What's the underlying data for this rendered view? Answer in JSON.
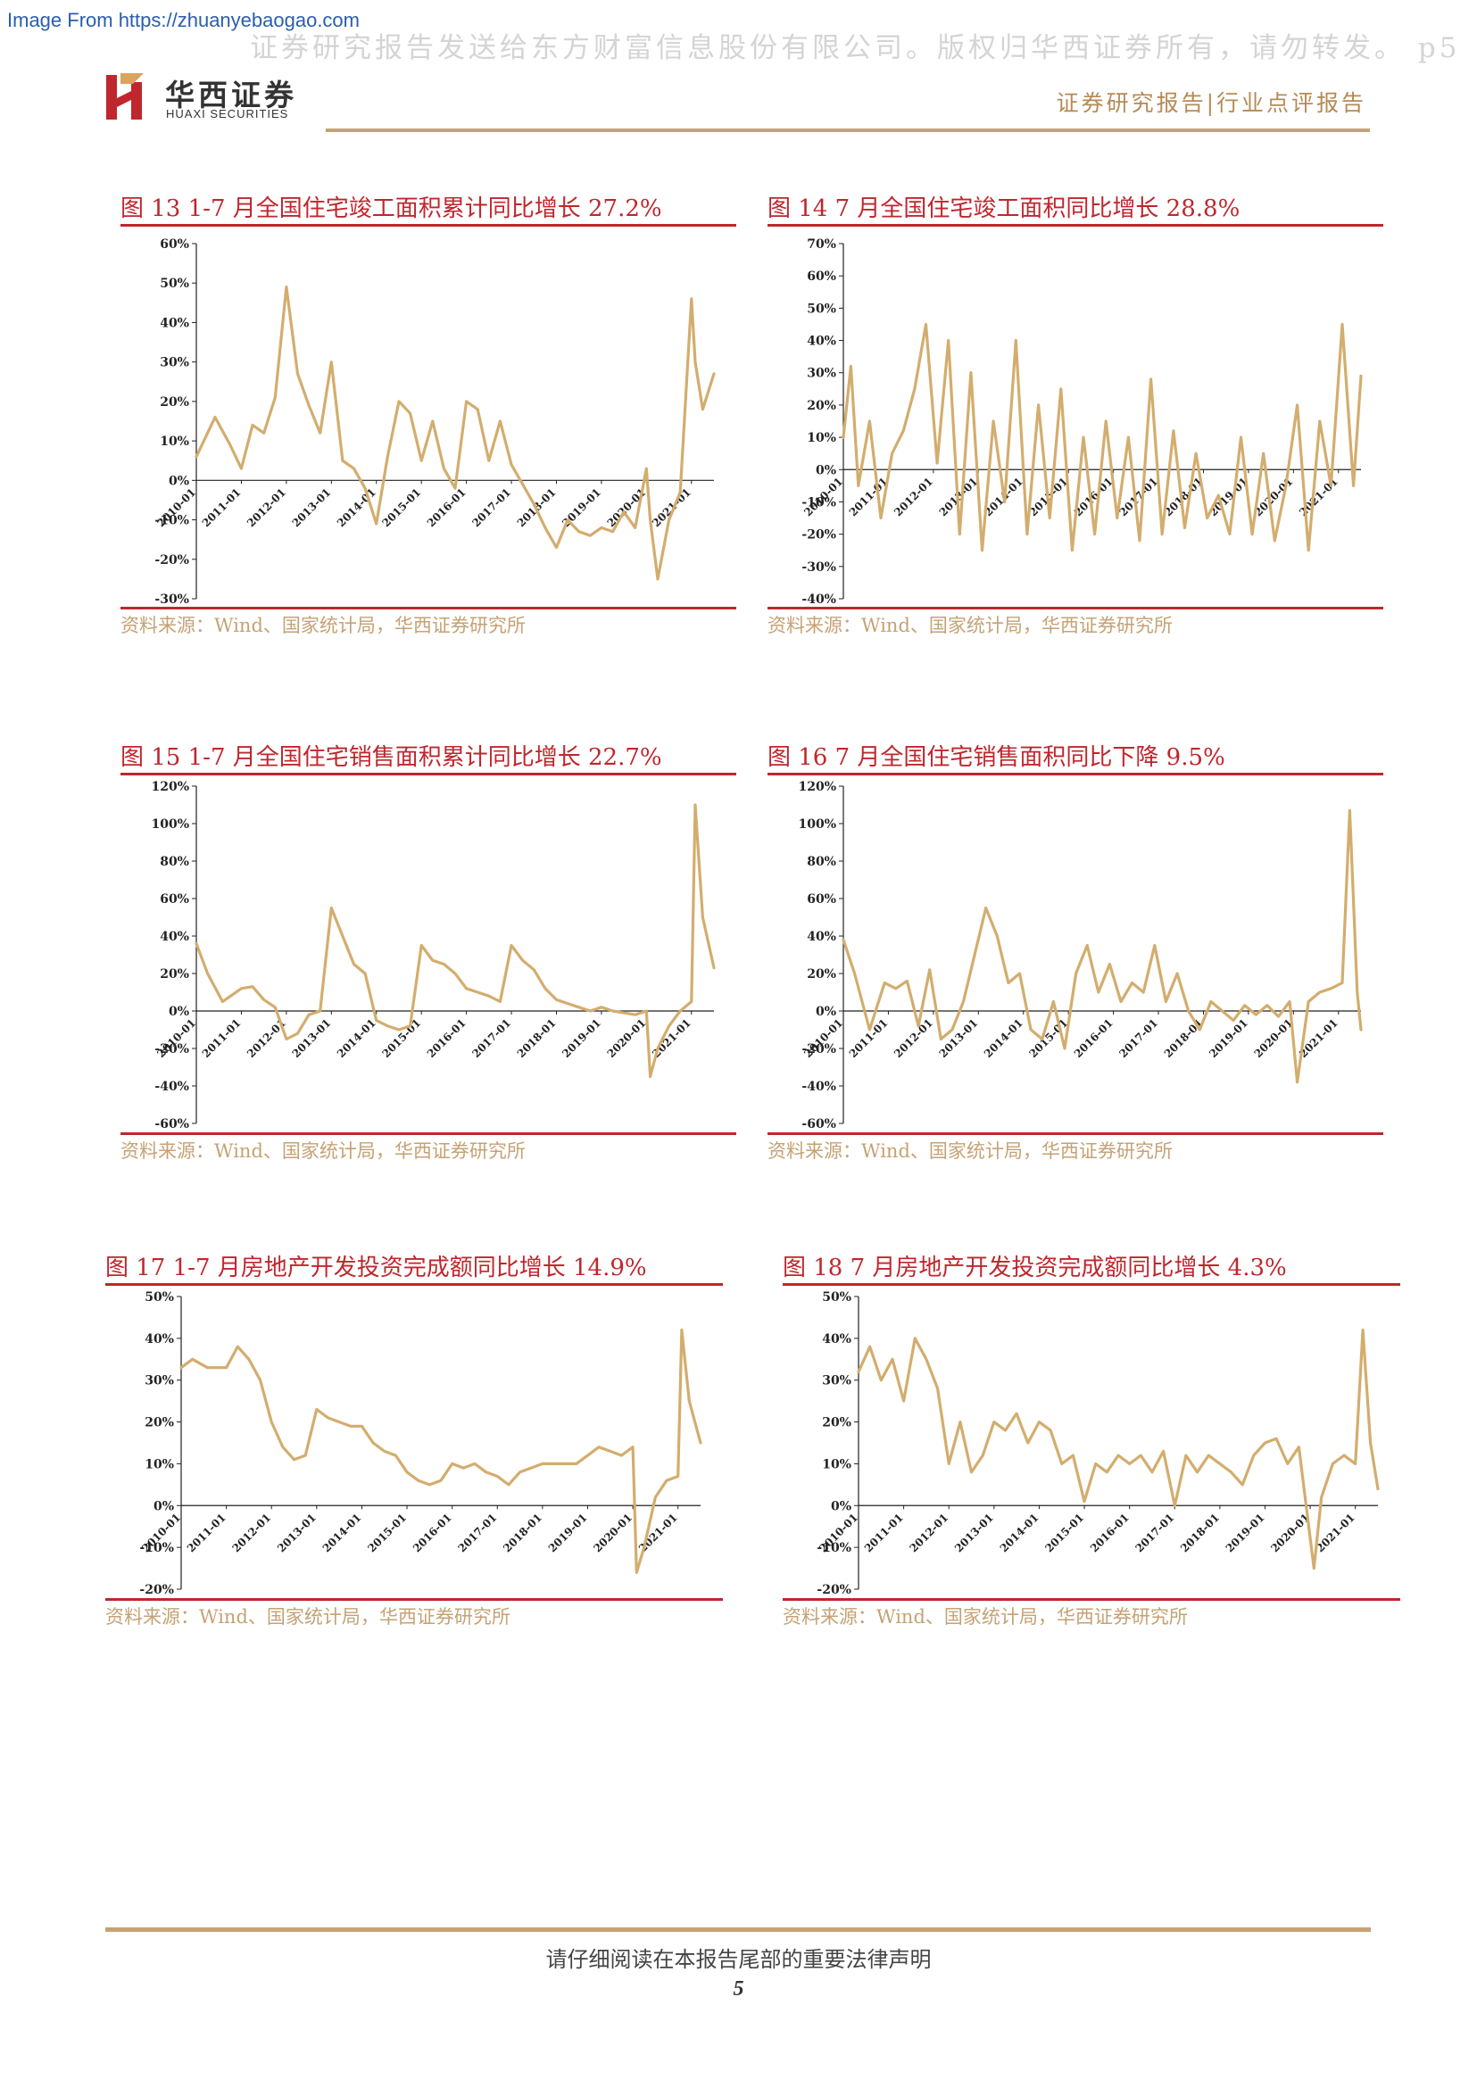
{
  "source_link": "Image From https://zhuanyebaogao.com",
  "watermark": "证券研究报告发送给东方财富信息股份有限公司。版权归华西证券所有，请勿转发。 p5",
  "brand": {
    "name_cn": "华西证券",
    "name_en": "HUAXI SECURITIES"
  },
  "report_type": "证券研究报告|行业点评报告",
  "footer_note": "请仔细阅读在本报告尾部的重要法律声明",
  "page_number": "5",
  "colors": {
    "series": "#d3ad6e",
    "accent_red": "#c0262d",
    "gold": "#c5a274"
  },
  "chart_data": [
    {
      "type": "line",
      "title": "图 13 1-7 月全国住宅竣工面积累计同比增长 27.2%",
      "source": "资料来源：Wind、国家统计局，华西证券研究所",
      "ylim": [
        -30,
        60
      ],
      "ystep": 10,
      "x_start": "2010-01",
      "x_end": "2021-07",
      "xticks": [
        "2010-01",
        "2011-01",
        "2012-01",
        "2013-01",
        "2014-01",
        "2015-01",
        "2016-01",
        "2017-01",
        "2018-01",
        "2019-01",
        "2020-01",
        "2021-01"
      ],
      "x": [
        "2010-01",
        "2010-06",
        "2010-10",
        "2011-01",
        "2011-04",
        "2011-07",
        "2011-10",
        "2012-01",
        "2012-04",
        "2012-07",
        "2012-10",
        "2013-01",
        "2013-04",
        "2013-07",
        "2013-10",
        "2014-01",
        "2014-04",
        "2014-07",
        "2014-10",
        "2015-01",
        "2015-04",
        "2015-07",
        "2015-10",
        "2016-01",
        "2016-04",
        "2016-07",
        "2016-10",
        "2017-01",
        "2017-04",
        "2017-07",
        "2017-10",
        "2018-01",
        "2018-04",
        "2018-07",
        "2018-10",
        "2019-01",
        "2019-04",
        "2019-07",
        "2019-10",
        "2020-01",
        "2020-02",
        "2020-04",
        "2020-07",
        "2020-10",
        "2021-01",
        "2021-02",
        "2021-04",
        "2021-07"
      ],
      "series": [
        {
          "values": [
            6,
            16,
            9,
            3,
            14,
            12,
            21,
            49,
            27,
            19,
            12,
            30,
            5,
            3,
            -2,
            -11,
            6,
            20,
            17,
            5,
            15,
            3,
            -2,
            20,
            18,
            5,
            15,
            4,
            -1,
            -6,
            -12,
            -17,
            -10,
            -13,
            -14,
            -12,
            -13,
            -8,
            -12,
            3,
            -10,
            -25,
            -10,
            -3,
            46,
            30,
            18,
            27
          ]
        }
      ]
    },
    {
      "type": "line",
      "title": "图 14 7 月全国住宅竣工面积同比增长 28.8%",
      "source": "资料来源：Wind、国家统计局，华西证券研究所",
      "ylim": [
        -40,
        70
      ],
      "ystep": 10,
      "x_start": "2010-01",
      "x_end": "2021-07",
      "xticks": [
        "2010-01",
        "2011-01",
        "2012-01",
        "2013-01",
        "2014-01",
        "2015-01",
        "2016-01",
        "2017-01",
        "2018-01",
        "2019-01",
        "2020-01",
        "2021-01"
      ],
      "x": [
        "2010-01",
        "2010-03",
        "2010-05",
        "2010-08",
        "2010-11",
        "2011-02",
        "2011-05",
        "2011-08",
        "2011-11",
        "2012-02",
        "2012-05",
        "2012-08",
        "2012-11",
        "2013-02",
        "2013-05",
        "2013-08",
        "2013-11",
        "2014-02",
        "2014-05",
        "2014-08",
        "2014-11",
        "2015-02",
        "2015-05",
        "2015-08",
        "2015-11",
        "2016-02",
        "2016-05",
        "2016-08",
        "2016-11",
        "2017-02",
        "2017-05",
        "2017-08",
        "2017-11",
        "2018-02",
        "2018-05",
        "2018-08",
        "2018-11",
        "2019-02",
        "2019-05",
        "2019-08",
        "2019-11",
        "2020-02",
        "2020-05",
        "2020-08",
        "2020-11",
        "2021-02",
        "2021-05",
        "2021-07"
      ],
      "series": [
        {
          "values": [
            10,
            32,
            -5,
            15,
            -15,
            5,
            12,
            25,
            45,
            2,
            40,
            -20,
            30,
            -25,
            15,
            -10,
            40,
            -20,
            20,
            -15,
            25,
            -25,
            10,
            -20,
            15,
            -15,
            10,
            -22,
            28,
            -20,
            12,
            -18,
            5,
            -15,
            -8,
            -20,
            10,
            -20,
            5,
            -22,
            -5,
            20,
            -25,
            15,
            -5,
            45,
            -5,
            29
          ]
        }
      ]
    },
    {
      "type": "line",
      "title": "图 15 1-7 月全国住宅销售面积累计同比增长 22.7%",
      "source": "资料来源：Wind、国家统计局，华西证券研究所",
      "ylim": [
        -60,
        120
      ],
      "ystep": 20,
      "x_start": "2010-01",
      "x_end": "2021-07",
      "xticks": [
        "2010-01",
        "2011-01",
        "2012-01",
        "2013-01",
        "2014-01",
        "2015-01",
        "2016-01",
        "2017-01",
        "2018-01",
        "2019-01",
        "2020-01",
        "2021-01"
      ],
      "x": [
        "2010-01",
        "2010-04",
        "2010-08",
        "2011-01",
        "2011-04",
        "2011-07",
        "2011-10",
        "2012-01",
        "2012-04",
        "2012-07",
        "2012-10",
        "2013-01",
        "2013-04",
        "2013-07",
        "2013-10",
        "2014-01",
        "2014-04",
        "2014-07",
        "2014-10",
        "2015-01",
        "2015-04",
        "2015-07",
        "2015-10",
        "2016-01",
        "2016-04",
        "2016-07",
        "2016-10",
        "2017-01",
        "2017-04",
        "2017-07",
        "2017-10",
        "2018-01",
        "2018-04",
        "2018-07",
        "2018-10",
        "2019-01",
        "2019-04",
        "2019-07",
        "2019-10",
        "2020-01",
        "2020-02",
        "2020-04",
        "2020-07",
        "2020-10",
        "2021-01",
        "2021-02",
        "2021-04",
        "2021-07"
      ],
      "series": [
        {
          "values": [
            36,
            20,
            5,
            12,
            13,
            6,
            2,
            -15,
            -12,
            -2,
            0,
            55,
            40,
            25,
            20,
            -5,
            -8,
            -10,
            -8,
            35,
            27,
            25,
            20,
            12,
            10,
            8,
            5,
            35,
            27,
            22,
            12,
            6,
            4,
            2,
            0,
            2,
            0,
            -1,
            -2,
            0,
            -35,
            -20,
            -8,
            0,
            5,
            110,
            50,
            23
          ]
        }
      ]
    },
    {
      "type": "line",
      "title": "图 16 7 月全国住宅销售面积同比下降 9.5%",
      "source": "资料来源：Wind、国家统计局，华西证券研究所",
      "ylim": [
        -60,
        120
      ],
      "ystep": 20,
      "x_start": "2010-01",
      "x_end": "2021-07",
      "xticks": [
        "2010-01",
        "2011-01",
        "2012-01",
        "2013-01",
        "2014-01",
        "2015-01",
        "2016-01",
        "2017-01",
        "2018-01",
        "2019-01",
        "2020-01",
        "2021-01"
      ],
      "x": [
        "2010-01",
        "2010-04",
        "2010-08",
        "2010-12",
        "2011-03",
        "2011-06",
        "2011-09",
        "2011-12",
        "2012-03",
        "2012-06",
        "2012-09",
        "2012-12",
        "2013-03",
        "2013-06",
        "2013-09",
        "2013-12",
        "2014-03",
        "2014-06",
        "2014-09",
        "2014-12",
        "2015-03",
        "2015-06",
        "2015-09",
        "2015-12",
        "2016-03",
        "2016-06",
        "2016-09",
        "2016-12",
        "2017-03",
        "2017-06",
        "2017-09",
        "2017-12",
        "2018-03",
        "2018-06",
        "2018-09",
        "2018-12",
        "2019-03",
        "2019-06",
        "2019-09",
        "2019-12",
        "2020-02",
        "2020-05",
        "2020-08",
        "2020-11",
        "2021-02",
        "2021-04",
        "2021-06",
        "2021-07"
      ],
      "series": [
        {
          "values": [
            38,
            20,
            -10,
            15,
            12,
            16,
            -8,
            22,
            -15,
            -10,
            5,
            30,
            55,
            40,
            15,
            20,
            -10,
            -15,
            5,
            -20,
            20,
            35,
            10,
            25,
            5,
            15,
            10,
            35,
            5,
            20,
            0,
            -10,
            5,
            0,
            -5,
            3,
            -2,
            3,
            -3,
            5,
            -38,
            5,
            10,
            12,
            15,
            107,
            10,
            -10
          ]
        }
      ]
    },
    {
      "type": "line",
      "title": "图 17 1-7 月房地产开发投资完成额同比增长 14.9%",
      "source": "资料来源：Wind、国家统计局，华西证券研究所",
      "ylim": [
        -20,
        50
      ],
      "ystep": 10,
      "x_start": "2010-01",
      "x_end": "2021-07",
      "xticks": [
        "2010-01",
        "2011-01",
        "2012-01",
        "2013-01",
        "2014-01",
        "2015-01",
        "2016-01",
        "2017-01",
        "2018-01",
        "2019-01",
        "2020-01",
        "2021-01"
      ],
      "x": [
        "2010-01",
        "2010-04",
        "2010-08",
        "2011-01",
        "2011-04",
        "2011-07",
        "2011-10",
        "2012-01",
        "2012-04",
        "2012-07",
        "2012-10",
        "2013-01",
        "2013-04",
        "2013-07",
        "2013-10",
        "2014-01",
        "2014-04",
        "2014-07",
        "2014-10",
        "2015-01",
        "2015-04",
        "2015-07",
        "2015-10",
        "2016-01",
        "2016-04",
        "2016-07",
        "2016-10",
        "2017-01",
        "2017-04",
        "2017-07",
        "2017-10",
        "2018-01",
        "2018-04",
        "2018-07",
        "2018-10",
        "2019-01",
        "2019-04",
        "2019-07",
        "2019-10",
        "2020-01",
        "2020-02",
        "2020-04",
        "2020-07",
        "2020-10",
        "2021-01",
        "2021-02",
        "2021-04",
        "2021-07"
      ],
      "series": [
        {
          "values": [
            33,
            35,
            33,
            33,
            38,
            35,
            30,
            20,
            14,
            11,
            12,
            23,
            21,
            20,
            19,
            19,
            15,
            13,
            12,
            8,
            6,
            5,
            6,
            10,
            9,
            10,
            8,
            7,
            5,
            8,
            9,
            10,
            10,
            10,
            10,
            12,
            14,
            13,
            12,
            14,
            -16,
            -10,
            2,
            6,
            7,
            42,
            25,
            15
          ]
        }
      ]
    },
    {
      "type": "line",
      "title": "图 18 7 月房地产开发投资完成额同比增长 4.3%",
      "source": "资料来源：Wind、国家统计局，华西证券研究所",
      "ylim": [
        -20,
        50
      ],
      "ystep": 10,
      "x_start": "2010-01",
      "x_end": "2021-07",
      "xticks": [
        "2010-01",
        "2011-01",
        "2012-01",
        "2013-01",
        "2014-01",
        "2015-01",
        "2016-01",
        "2017-01",
        "2018-01",
        "2019-01",
        "2020-01",
        "2021-01"
      ],
      "x": [
        "2010-01",
        "2010-04",
        "2010-07",
        "2010-10",
        "2011-01",
        "2011-04",
        "2011-07",
        "2011-10",
        "2012-01",
        "2012-04",
        "2012-07",
        "2012-10",
        "2013-01",
        "2013-04",
        "2013-07",
        "2013-10",
        "2014-01",
        "2014-04",
        "2014-07",
        "2014-10",
        "2015-01",
        "2015-04",
        "2015-07",
        "2015-10",
        "2016-01",
        "2016-04",
        "2016-07",
        "2016-10",
        "2017-01",
        "2017-04",
        "2017-07",
        "2017-10",
        "2018-01",
        "2018-04",
        "2018-07",
        "2018-10",
        "2019-01",
        "2019-04",
        "2019-07",
        "2019-10",
        "2020-02",
        "2020-04",
        "2020-07",
        "2020-10",
        "2021-01",
        "2021-03",
        "2021-05",
        "2021-07"
      ],
      "series": [
        {
          "values": [
            32,
            38,
            30,
            35,
            25,
            40,
            35,
            28,
            10,
            20,
            8,
            12,
            20,
            18,
            22,
            15,
            20,
            18,
            10,
            12,
            1,
            10,
            8,
            12,
            10,
            12,
            8,
            13,
            0,
            12,
            8,
            12,
            10,
            8,
            5,
            12,
            15,
            16,
            10,
            14,
            -15,
            2,
            10,
            12,
            10,
            42,
            15,
            4
          ]
        }
      ]
    }
  ]
}
